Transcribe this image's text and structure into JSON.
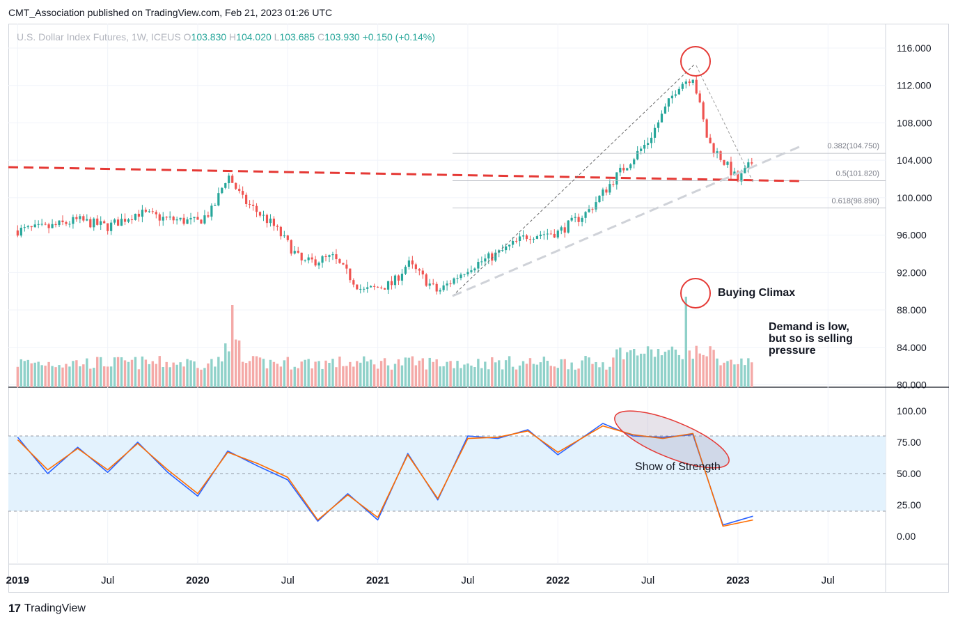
{
  "publisher_line": "CMT_Association published on TradingView.com, Feb 21, 2023 01:26 UTC",
  "symbol": {
    "name": "U.S. Dollar Index Futures, 1W, ICEUS",
    "o_label": "O",
    "o": "103.830",
    "h_label": "H",
    "h": "104.020",
    "l_label": "L",
    "l": "103.685",
    "c_label": "C",
    "c": "103.930",
    "change": "+0.150 (+0.14%)"
  },
  "annotations": {
    "buying_climax": "Buying Climax",
    "demand": [
      "Demand is low,",
      "but so is selling",
      "pressure"
    ],
    "show_of_strength": "Show of Strength",
    "fib": [
      "0.382(104.750)",
      "0.5(101.820)",
      "0.618(98.890)"
    ]
  },
  "footer": {
    "logo": "17",
    "brand": "TradingView"
  },
  "colors": {
    "up": "#26a69a",
    "down": "#ef5350",
    "stoch_k": "#2962ff",
    "stoch_d": "#ff6d00",
    "red_line": "#e53935",
    "band": "#e3f2fd"
  },
  "chart_data": [
    {
      "type": "candlestick",
      "title": "U.S. Dollar Index Futures, 1W, ICEUS",
      "y_ticks": [
        "116.000",
        "112.000",
        "108.000",
        "104.000",
        "100.000",
        "96.000",
        "92.000",
        "88.000",
        "84.000",
        "80.000"
      ],
      "x_ticks": [
        "2019",
        "Jul",
        "2020",
        "Jul",
        "2021",
        "Jul",
        "2022",
        "Jul",
        "2023",
        "Jul"
      ],
      "ylim": [
        80,
        117
      ],
      "approx_close_path": [
        {
          "date": "2019-01",
          "close": 96.5
        },
        {
          "date": "2019-03",
          "close": 96.8
        },
        {
          "date": "2019-05",
          "close": 97.6
        },
        {
          "date": "2019-07",
          "close": 96.9
        },
        {
          "date": "2019-09",
          "close": 98.4
        },
        {
          "date": "2019-11",
          "close": 97.7
        },
        {
          "date": "2020-01",
          "close": 97.4
        },
        {
          "date": "2020-02",
          "close": 98.7
        },
        {
          "date": "2020-03",
          "close": 102.5
        },
        {
          "date": "2020-04",
          "close": 99.8
        },
        {
          "date": "2020-06",
          "close": 97.1
        },
        {
          "date": "2020-08",
          "close": 93.0
        },
        {
          "date": "2020-10",
          "close": 93.6
        },
        {
          "date": "2020-12",
          "close": 90.0
        },
        {
          "date": "2021-02",
          "close": 90.8
        },
        {
          "date": "2021-03",
          "close": 93.0
        },
        {
          "date": "2021-05",
          "close": 89.9
        },
        {
          "date": "2021-07",
          "close": 92.5
        },
        {
          "date": "2021-09",
          "close": 94.0
        },
        {
          "date": "2021-11",
          "close": 96.0
        },
        {
          "date": "2022-01",
          "close": 96.3
        },
        {
          "date": "2022-03",
          "close": 98.5
        },
        {
          "date": "2022-05",
          "close": 102.5
        },
        {
          "date": "2022-07",
          "close": 106.0
        },
        {
          "date": "2022-09",
          "close": 112.0
        },
        {
          "date": "2022-10",
          "close": 113.0
        },
        {
          "date": "2022-11",
          "close": 106.0
        },
        {
          "date": "2022-12",
          "close": 104.0
        },
        {
          "date": "2023-01",
          "close": 101.8
        },
        {
          "date": "2023-02",
          "close": 103.93
        }
      ],
      "fibonacci": [
        {
          "level": 0.382,
          "price": 104.75
        },
        {
          "level": 0.5,
          "price": 101.82
        },
        {
          "level": 0.618,
          "price": 98.89
        }
      ],
      "horizontal_support": 102.8
    },
    {
      "type": "bar",
      "title": "Volume",
      "note": "Buying Climax volume spike near Sep 2022"
    },
    {
      "type": "line",
      "title": "Stochastic",
      "y_ticks": [
        "100.00",
        "75.00",
        "50.00",
        "25.00",
        "0.00"
      ],
      "ylim": [
        -10,
        108
      ],
      "bands": [
        80,
        50,
        20
      ],
      "series": [
        {
          "values": [
            {
              "x": "2019-01",
              "y": 79
            },
            {
              "x": "2019-03",
              "y": 50
            },
            {
              "x": "2019-05",
              "y": 71
            },
            {
              "x": "2019-07",
              "y": 51
            },
            {
              "x": "2019-09",
              "y": 75
            },
            {
              "x": "2019-11",
              "y": 51
            },
            {
              "x": "2020-01",
              "y": 32
            },
            {
              "x": "2020-03",
              "y": 68
            },
            {
              "x": "2020-05",
              "y": 56
            },
            {
              "x": "2020-07",
              "y": 45
            },
            {
              "x": "2020-09",
              "y": 12
            },
            {
              "x": "2020-11",
              "y": 34
            },
            {
              "x": "2021-01",
              "y": 13
            },
            {
              "x": "2021-03",
              "y": 66
            },
            {
              "x": "2021-05",
              "y": 29
            },
            {
              "x": "2021-07",
              "y": 80
            },
            {
              "x": "2021-09",
              "y": 78
            },
            {
              "x": "2021-11",
              "y": 85
            },
            {
              "x": "2022-01",
              "y": 65
            },
            {
              "x": "2022-04",
              "y": 90
            },
            {
              "x": "2022-06",
              "y": 80
            },
            {
              "x": "2022-08",
              "y": 79
            },
            {
              "x": "2022-10",
              "y": 81
            },
            {
              "x": "2022-12",
              "y": 9
            },
            {
              "x": "2023-02",
              "y": 16
            }
          ]
        },
        {
          "values": [
            {
              "x": "2019-01",
              "y": 77
            },
            {
              "x": "2019-03",
              "y": 53
            },
            {
              "x": "2019-05",
              "y": 70
            },
            {
              "x": "2019-07",
              "y": 53
            },
            {
              "x": "2019-09",
              "y": 74
            },
            {
              "x": "2019-11",
              "y": 53
            },
            {
              "x": "2020-01",
              "y": 34
            },
            {
              "x": "2020-03",
              "y": 67
            },
            {
              "x": "2020-05",
              "y": 58
            },
            {
              "x": "2020-07",
              "y": 47
            },
            {
              "x": "2020-09",
              "y": 13
            },
            {
              "x": "2020-11",
              "y": 33
            },
            {
              "x": "2021-01",
              "y": 15
            },
            {
              "x": "2021-03",
              "y": 65
            },
            {
              "x": "2021-05",
              "y": 30
            },
            {
              "x": "2021-07",
              "y": 78
            },
            {
              "x": "2021-09",
              "y": 79
            },
            {
              "x": "2021-11",
              "y": 84
            },
            {
              "x": "2022-01",
              "y": 67
            },
            {
              "x": "2022-04",
              "y": 88
            },
            {
              "x": "2022-06",
              "y": 81
            },
            {
              "x": "2022-08",
              "y": 78
            },
            {
              "x": "2022-10",
              "y": 82
            },
            {
              "x": "2022-12",
              "y": 8
            },
            {
              "x": "2023-02",
              "y": 13
            }
          ]
        }
      ]
    }
  ]
}
